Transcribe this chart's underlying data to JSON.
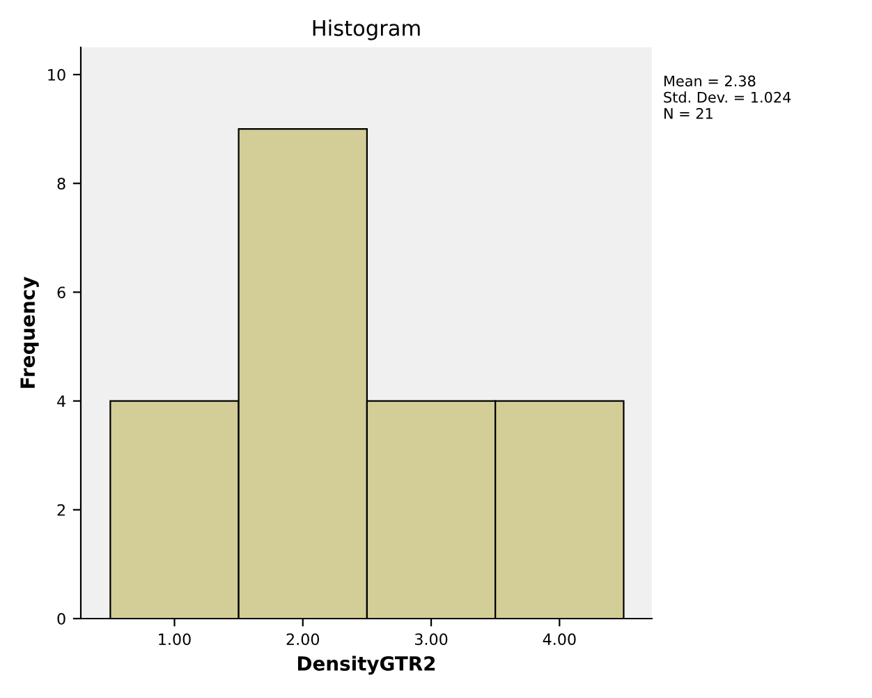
{
  "chart_data": {
    "type": "histogram",
    "title": "Histogram",
    "xlabel": "DensityGTR2",
    "ylabel": "Frequency",
    "bins": [
      0.5,
      1.5,
      2.5,
      3.5,
      4.5
    ],
    "values": [
      4,
      9,
      4,
      4
    ],
    "color": "#d3ce97",
    "xlim": [
      0.27,
      4.72
    ],
    "xticks": [
      {
        "value": 1,
        "label": "1.00"
      },
      {
        "value": 2,
        "label": "2.00"
      },
      {
        "value": 3,
        "label": "3.00"
      },
      {
        "value": 4,
        "label": "4.00"
      }
    ],
    "ylim": [
      0,
      10.5
    ],
    "yticks": [
      0,
      2,
      4,
      6,
      8,
      10
    ],
    "grid": false,
    "annotations": [
      "Mean = 2.38\nStd. Dev. = 1.024\nN = 21"
    ]
  }
}
